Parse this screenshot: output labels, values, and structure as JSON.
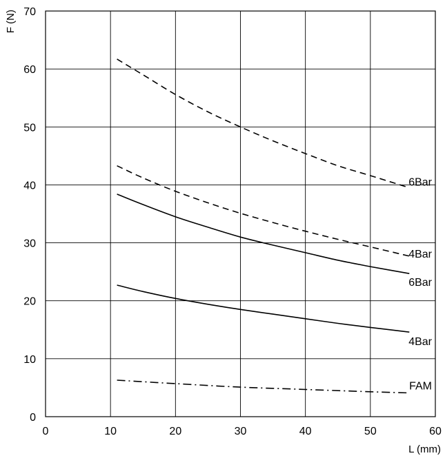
{
  "chart_data": {
    "type": "line",
    "xlabel": "L (mm)",
    "ylabel": "F (N)",
    "xlim": [
      0,
      60
    ],
    "ylim": [
      0,
      70
    ],
    "xticks": [
      "0",
      "10",
      "20",
      "30",
      "40",
      "50",
      "60"
    ],
    "yticks": [
      "0",
      "10",
      "20",
      "30",
      "40",
      "50",
      "60",
      "70"
    ],
    "grid": true,
    "series": [
      {
        "name": "6Bar",
        "line_style": "dashed",
        "x": [
          11,
          15,
          20,
          25,
          30,
          35,
          40,
          45,
          50,
          56
        ],
        "y": [
          61.7,
          59.0,
          55.6,
          52.6,
          50.0,
          47.6,
          45.4,
          43.3,
          41.6,
          39.5
        ]
      },
      {
        "name": "4Bar",
        "line_style": "dashed",
        "x": [
          11,
          15,
          20,
          25,
          30,
          35,
          40,
          45,
          50,
          56
        ],
        "y": [
          43.3,
          41.2,
          38.9,
          36.9,
          35.1,
          33.5,
          32.0,
          30.6,
          29.3,
          27.7
        ]
      },
      {
        "name": "6Bar",
        "line_style": "solid",
        "x": [
          11,
          15,
          20,
          25,
          30,
          35,
          40,
          45,
          50,
          56
        ],
        "y": [
          38.4,
          36.6,
          34.5,
          32.7,
          31.0,
          29.6,
          28.3,
          27.0,
          25.9,
          24.7
        ]
      },
      {
        "name": "4Bar",
        "line_style": "solid",
        "x": [
          11,
          15,
          20,
          25,
          30,
          35,
          40,
          45,
          50,
          56
        ],
        "y": [
          22.7,
          21.6,
          20.4,
          19.4,
          18.5,
          17.7,
          16.9,
          16.1,
          15.4,
          14.6
        ]
      },
      {
        "name": "FAM",
        "line_style": "dash-dot",
        "x": [
          11,
          20,
          30,
          40,
          50,
          56
        ],
        "y": [
          6.3,
          5.7,
          5.1,
          4.7,
          4.3,
          4.1
        ]
      }
    ]
  }
}
